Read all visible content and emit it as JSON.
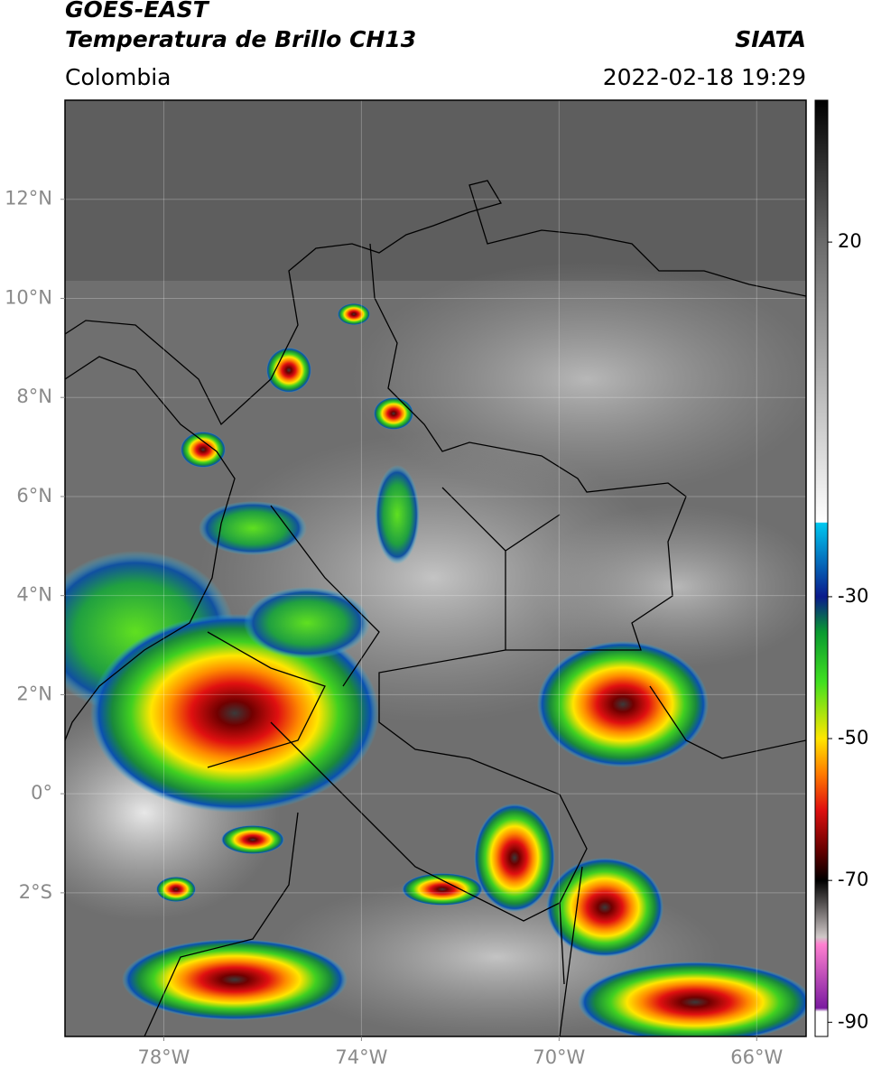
{
  "header": {
    "title": "GOES-EAST",
    "subtitle": "Temperatura de Brillo CH13",
    "region": "Colombia",
    "source": "SIATA",
    "timestamp": "2022-02-18 19:29"
  },
  "map": {
    "xlim": [
      -80,
      -65
    ],
    "ylim": [
      -4.9,
      14
    ],
    "xticks": [
      {
        "value": -78,
        "label": "78°W"
      },
      {
        "value": -74,
        "label": "74°W"
      },
      {
        "value": -70,
        "label": "70°W"
      },
      {
        "value": -66,
        "label": "66°W"
      }
    ],
    "yticks": [
      {
        "value": 12,
        "label": "12°N"
      },
      {
        "value": 10,
        "label": "10°N"
      },
      {
        "value": 8,
        "label": "8°N"
      },
      {
        "value": 6,
        "label": "6°N"
      },
      {
        "value": 4,
        "label": "4°N"
      },
      {
        "value": 2,
        "label": "2°N"
      },
      {
        "value": 0,
        "label": "0°"
      },
      {
        "value": -2,
        "label": "2°S"
      }
    ],
    "grid": true
  },
  "colorbar": {
    "ylim": [
      -92,
      40
    ],
    "yticks": [
      20,
      -30,
      -50,
      -70,
      -90
    ],
    "colormap": [
      {
        "value": 40,
        "color": "#000000"
      },
      {
        "value": 20,
        "color": "#6a6a6a"
      },
      {
        "value": -19.5,
        "color": "#ffffff"
      },
      {
        "value": -19.6,
        "color": "#00c8f0"
      },
      {
        "value": -30,
        "color": "#0a1a8c"
      },
      {
        "value": -35,
        "color": "#0a9a30"
      },
      {
        "value": -42,
        "color": "#40e020"
      },
      {
        "value": -50,
        "color": "#ffe600"
      },
      {
        "value": -55,
        "color": "#ff7a00"
      },
      {
        "value": -60,
        "color": "#e01010"
      },
      {
        "value": -66,
        "color": "#600000"
      },
      {
        "value": -70,
        "color": "#000000"
      },
      {
        "value": -78,
        "color": "#d0c8c8"
      },
      {
        "value": -79,
        "color": "#ff80d0"
      },
      {
        "value": -88,
        "color": "#7a1aa0"
      },
      {
        "value": -88.5,
        "color": "#ffffff"
      },
      {
        "value": -92,
        "color": "#ffffff"
      }
    ]
  }
}
